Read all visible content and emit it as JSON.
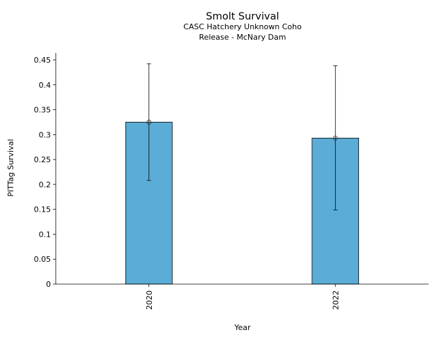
{
  "chart_data": {
    "type": "bar",
    "title": "Smolt Survival",
    "subtitle": [
      "CASC Hatchery Unknown Coho",
      "Release - McNary Dam"
    ],
    "xlabel": "Year",
    "ylabel": "PITTag Survival",
    "categories": [
      "2020",
      "2022"
    ],
    "values": [
      0.325,
      0.293
    ],
    "error_low": [
      0.208,
      0.149
    ],
    "error_high": [
      0.442,
      0.438
    ],
    "ylim": [
      0,
      0.45
    ],
    "yticks": [
      "0",
      "0.05",
      "0.1",
      "0.15",
      "0.2",
      "0.25",
      "0.3",
      "0.35",
      "0.4",
      "0.45"
    ],
    "grid": false,
    "bar_color": "#5BACD6"
  }
}
